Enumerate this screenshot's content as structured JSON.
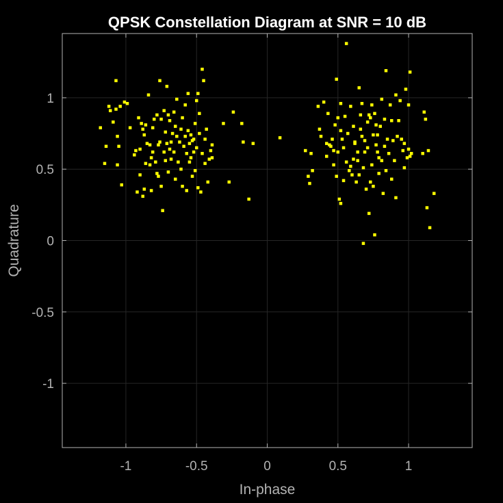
{
  "chart_data": {
    "type": "scatter",
    "title": "QPSK Constellation Diagram at SNR = 10 dB",
    "xlabel": "In-phase",
    "ylabel": "Quadrature",
    "xlim": [
      -1.45,
      1.45
    ],
    "ylim": [
      -1.45,
      1.45
    ],
    "xticks": [
      -1,
      -0.5,
      0,
      0.5,
      1
    ],
    "xtick_labels": [
      "-1",
      "-0.5",
      "0",
      "0.5",
      "1"
    ],
    "yticks": [
      -1,
      -0.5,
      0,
      0.5,
      1
    ],
    "ytick_labels": [
      "-1",
      "-0.5",
      "0",
      "0.5",
      "1"
    ],
    "grid": true,
    "colors": {
      "background": "#000000",
      "axes": "#b3b3b3",
      "grid": "#262626",
      "marker": "#ffff00",
      "title": "#ffffff"
    },
    "series": [
      {
        "marker": "square",
        "points": [
          [
            -1.18,
            0.79
          ],
          [
            -1.15,
            0.54
          ],
          [
            -1.14,
            0.66
          ],
          [
            -1.12,
            0.94
          ],
          [
            -1.11,
            0.91
          ],
          [
            -1.09,
            0.83
          ],
          [
            -1.07,
            1.12
          ],
          [
            -1.07,
            0.92
          ],
          [
            -1.06,
            0.73
          ],
          [
            -1.06,
            0.53
          ],
          [
            -1.05,
            0.66
          ],
          [
            -1.04,
            0.94
          ],
          [
            -1.03,
            0.39
          ],
          [
            -1.01,
            0.97
          ],
          [
            -0.99,
            0.96
          ],
          [
            -0.97,
            0.79
          ],
          [
            -0.94,
            0.6
          ],
          [
            -0.93,
            0.63
          ],
          [
            -0.92,
            0.34
          ],
          [
            -0.91,
            0.86
          ],
          [
            -0.9,
            0.64
          ],
          [
            -0.9,
            0.46
          ],
          [
            -0.89,
            0.82
          ],
          [
            -0.88,
            0.78
          ],
          [
            -0.88,
            0.31
          ],
          [
            -0.87,
            0.74
          ],
          [
            -0.87,
            0.36
          ],
          [
            -0.86,
            0.81
          ],
          [
            -0.86,
            0.54
          ],
          [
            -0.85,
            0.68
          ],
          [
            -0.84,
            1.02
          ],
          [
            -0.83,
            0.67
          ],
          [
            -0.83,
            0.53
          ],
          [
            -0.82,
            0.58
          ],
          [
            -0.82,
            0.35
          ],
          [
            -0.81,
            0.79
          ],
          [
            -0.81,
            0.62
          ],
          [
            -0.8,
            0.85
          ],
          [
            -0.79,
            0.55
          ],
          [
            -0.78,
            0.88
          ],
          [
            -0.78,
            0.47
          ],
          [
            -0.77,
            0.67
          ],
          [
            -0.77,
            0.45
          ],
          [
            -0.76,
            1.12
          ],
          [
            -0.76,
            0.69
          ],
          [
            -0.75,
            0.85
          ],
          [
            -0.75,
            0.38
          ],
          [
            -0.74,
            0.21
          ],
          [
            -0.73,
            0.91
          ],
          [
            -0.73,
            0.62
          ],
          [
            -0.72,
            0.76
          ],
          [
            -0.72,
            0.56
          ],
          [
            -0.71,
            0.68
          ],
          [
            -0.71,
            1.08
          ],
          [
            -0.7,
            0.88
          ],
          [
            -0.7,
            0.48
          ],
          [
            -0.69,
            0.64
          ],
          [
            -0.69,
            0.84
          ],
          [
            -0.68,
            0.69
          ],
          [
            -0.68,
            0.57
          ],
          [
            -0.67,
            0.75
          ],
          [
            -0.66,
            0.62
          ],
          [
            -0.66,
            0.9
          ],
          [
            -0.65,
            0.8
          ],
          [
            -0.65,
            0.43
          ],
          [
            -0.64,
            0.73
          ],
          [
            -0.64,
            0.99
          ],
          [
            -0.63,
            0.55
          ],
          [
            -0.62,
            0.69
          ],
          [
            -0.61,
            0.78
          ],
          [
            -0.61,
            0.5
          ],
          [
            -0.6,
            0.38
          ],
          [
            -0.6,
            0.86
          ],
          [
            -0.59,
            0.66
          ],
          [
            -0.58,
            0.73
          ],
          [
            -0.58,
            0.95
          ],
          [
            -0.57,
            0.61
          ],
          [
            -0.57,
            0.35
          ],
          [
            -0.56,
            0.77
          ],
          [
            -0.56,
            1.03
          ],
          [
            -0.55,
            0.68
          ],
          [
            -0.55,
            0.55
          ],
          [
            -0.54,
            0.74
          ],
          [
            -0.54,
            0.58
          ],
          [
            -0.53,
            0.45
          ],
          [
            -0.53,
            0.7
          ],
          [
            -0.52,
            0.71
          ],
          [
            -0.52,
            0.62
          ],
          [
            -0.51,
            0.82
          ],
          [
            -0.51,
            0.49
          ],
          [
            -0.5,
            0.98
          ],
          [
            -0.5,
            0.65
          ],
          [
            -0.49,
            0.37
          ],
          [
            -0.49,
            1.03
          ],
          [
            -0.48,
            0.89
          ],
          [
            -0.48,
            0.75
          ],
          [
            -0.47,
            0.34
          ],
          [
            -0.46,
            0.61
          ],
          [
            -0.46,
            1.2
          ],
          [
            -0.45,
            1.12
          ],
          [
            -0.44,
            0.71
          ],
          [
            -0.44,
            0.54
          ],
          [
            -0.43,
            0.78
          ],
          [
            -0.42,
            0.41
          ],
          [
            -0.41,
            0.57
          ],
          [
            -0.4,
            0.63
          ],
          [
            -0.39,
            0.58
          ],
          [
            -0.39,
            0.67
          ],
          [
            -0.31,
            0.82
          ],
          [
            -0.27,
            0.41
          ],
          [
            -0.24,
            0.9
          ],
          [
            -0.18,
            0.82
          ],
          [
            -0.17,
            0.69
          ],
          [
            -0.13,
            0.29
          ],
          [
            -0.1,
            0.68
          ],
          [
            0.09,
            0.72
          ],
          [
            0.27,
            0.63
          ],
          [
            0.29,
            0.45
          ],
          [
            0.3,
            0.4
          ],
          [
            0.31,
            0.61
          ],
          [
            0.32,
            0.49
          ],
          [
            0.36,
            0.94
          ],
          [
            0.37,
            0.78
          ],
          [
            0.38,
            0.73
          ],
          [
            0.4,
            0.97
          ],
          [
            0.42,
            0.59
          ],
          [
            0.42,
            0.68
          ],
          [
            0.43,
            0.89
          ],
          [
            0.44,
            0.67
          ],
          [
            0.45,
            0.66
          ],
          [
            0.46,
            0.71
          ],
          [
            0.47,
            0.63
          ],
          [
            0.47,
            0.53
          ],
          [
            0.48,
            0.81
          ],
          [
            0.49,
            1.13
          ],
          [
            0.49,
            0.45
          ],
          [
            0.5,
            0.86
          ],
          [
            0.5,
            0.62
          ],
          [
            0.51,
            0.29
          ],
          [
            0.52,
            0.77
          ],
          [
            0.52,
            0.96
          ],
          [
            0.52,
            0.26
          ],
          [
            0.53,
            0.71
          ],
          [
            0.54,
            0.42
          ],
          [
            0.54,
            0.65
          ],
          [
            0.55,
            0.87
          ],
          [
            0.56,
            0.55
          ],
          [
            0.56,
            1.38
          ],
          [
            0.57,
            0.75
          ],
          [
            0.58,
            0.49
          ],
          [
            0.59,
            0.52
          ],
          [
            0.59,
            0.94
          ],
          [
            0.6,
            0.46
          ],
          [
            0.61,
            0.57
          ],
          [
            0.61,
            0.8
          ],
          [
            0.62,
            0.68
          ],
          [
            0.62,
            0.69
          ],
          [
            0.63,
            0.41
          ],
          [
            0.64,
            0.62
          ],
          [
            0.64,
            0.56
          ],
          [
            0.65,
            0.46
          ],
          [
            0.65,
            1.07
          ],
          [
            0.66,
            0.78
          ],
          [
            0.66,
            0.88
          ],
          [
            0.67,
            0.96
          ],
          [
            0.67,
            0.73
          ],
          [
            0.68,
            -0.02
          ],
          [
            0.68,
            0.51
          ],
          [
            0.69,
            0.62
          ],
          [
            0.69,
            0.7
          ],
          [
            0.7,
            0.36
          ],
          [
            0.71,
            0.83
          ],
          [
            0.71,
            0.65
          ],
          [
            0.72,
            0.88
          ],
          [
            0.72,
            0.19
          ],
          [
            0.73,
            0.86
          ],
          [
            0.73,
            0.41
          ],
          [
            0.74,
            0.95
          ],
          [
            0.74,
            0.53
          ],
          [
            0.75,
            0.74
          ],
          [
            0.75,
            0.38
          ],
          [
            0.76,
            0.89
          ],
          [
            0.76,
            0.04
          ],
          [
            0.77,
            0.67
          ],
          [
            0.77,
            0.81
          ],
          [
            0.78,
            0.74
          ],
          [
            0.78,
            0.62
          ],
          [
            0.79,
            0.58
          ],
          [
            0.79,
            0.47
          ],
          [
            0.8,
            0.8
          ],
          [
            0.81,
            0.99
          ],
          [
            0.81,
            0.56
          ],
          [
            0.82,
            0.33
          ],
          [
            0.83,
            0.66
          ],
          [
            0.83,
            0.85
          ],
          [
            0.84,
            1.19
          ],
          [
            0.84,
            0.49
          ],
          [
            0.85,
            0.71
          ],
          [
            0.86,
            0.61
          ],
          [
            0.87,
            0.95
          ],
          [
            0.88,
            0.84
          ],
          [
            0.88,
            0.43
          ],
          [
            0.89,
            0.7
          ],
          [
            0.9,
            0.56
          ],
          [
            0.91,
            1.02
          ],
          [
            0.91,
            0.3
          ],
          [
            0.92,
            0.73
          ],
          [
            0.93,
            0.84
          ],
          [
            0.94,
            0.98
          ],
          [
            0.95,
            0.71
          ],
          [
            0.96,
            0.63
          ],
          [
            0.97,
            0.68
          ],
          [
            0.97,
            0.51
          ],
          [
            0.98,
            1.06
          ],
          [
            0.99,
            0.58
          ],
          [
            1.0,
            0.95
          ],
          [
            1.0,
            0.64
          ],
          [
            1.01,
            1.18
          ],
          [
            1.01,
            0.59
          ],
          [
            1.02,
            0.61
          ],
          [
            1.1,
            0.61
          ],
          [
            1.11,
            0.9
          ],
          [
            1.12,
            0.85
          ],
          [
            1.13,
            0.23
          ],
          [
            1.14,
            0.63
          ],
          [
            1.15,
            0.09
          ],
          [
            1.18,
            0.33
          ]
        ]
      }
    ]
  }
}
